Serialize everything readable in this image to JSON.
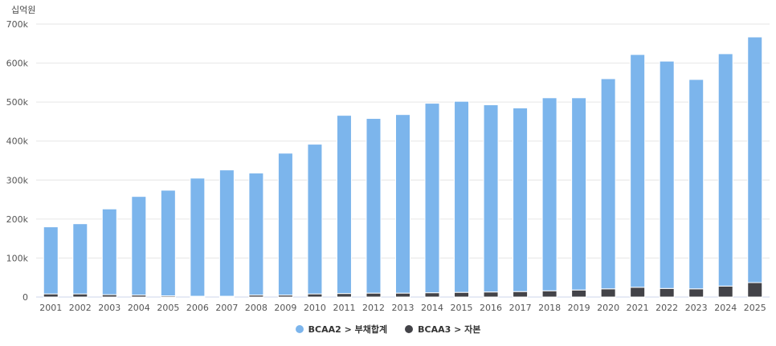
{
  "chart_data": {
    "type": "bar",
    "stacked": true,
    "unit_label": "십억원",
    "categories": [
      "2001",
      "2002",
      "2003",
      "2004",
      "2005",
      "2006",
      "2007",
      "2008",
      "2009",
      "2010",
      "2011",
      "2012",
      "2013",
      "2014",
      "2015",
      "2016",
      "2017",
      "2018",
      "2019",
      "2020",
      "2021",
      "2022",
      "2023",
      "2024",
      "2025"
    ],
    "series": [
      {
        "name": "BCAA2 > 부채합계",
        "color": "#7cb5ec",
        "values": [
          172000,
          180000,
          220000,
          253000,
          271000,
          303000,
          324000,
          313000,
          364000,
          384000,
          457000,
          448000,
          458000,
          486000,
          490000,
          480000,
          471000,
          495000,
          493000,
          539000,
          597000,
          583000,
          537000,
          596000,
          630000
        ]
      },
      {
        "name": "BCAA3 > 자본",
        "color": "#434348",
        "values": [
          8000,
          8000,
          6000,
          5000,
          3000,
          2000,
          2000,
          5000,
          5000,
          8000,
          9000,
          10000,
          10000,
          11000,
          12000,
          13000,
          14000,
          16000,
          18000,
          21000,
          25000,
          22000,
          21000,
          28000,
          37000
        ]
      }
    ],
    "ylim": [
      0,
      700000
    ],
    "yticks": [
      0,
      100000,
      200000,
      300000,
      400000,
      500000,
      600000,
      700000
    ],
    "ytick_labels": [
      "0",
      "100k",
      "200k",
      "300k",
      "400k",
      "500k",
      "600k",
      "700k"
    ],
    "grid": true,
    "legend_position": "bottom-center"
  }
}
